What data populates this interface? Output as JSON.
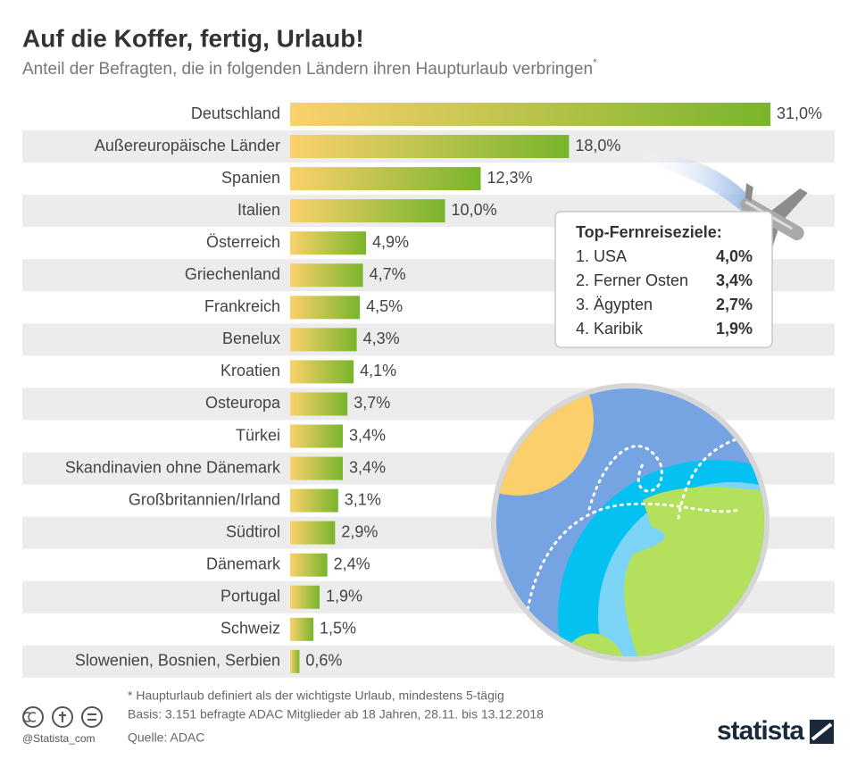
{
  "chart_data": {
    "type": "bar",
    "title": "Auf die Koffer, fertig, Urlaub!",
    "subtitle": "Anteil der Befragten, die in folgenden Ländern ihren Haupturlaub verbringen",
    "subtitle_mark": "*",
    "categories": [
      "Deutschland",
      "Außereuropäische Länder",
      "Spanien",
      "Italien",
      "Österreich",
      "Griechenland",
      "Frankreich",
      "Benelux",
      "Kroatien",
      "Osteuropa",
      "Türkei",
      "Skandinavien ohne Dänemark",
      "Großbritannien/Irland",
      "Südtirol",
      "Dänemark",
      "Portugal",
      "Schweiz",
      "Slowenien, Bosnien, Serbien"
    ],
    "values": [
      31.0,
      18.0,
      12.3,
      10.0,
      4.9,
      4.7,
      4.5,
      4.3,
      4.1,
      3.7,
      3.4,
      3.4,
      3.1,
      2.9,
      2.4,
      1.9,
      1.5,
      0.6
    ],
    "value_labels": [
      "31,0%",
      "18,0%",
      "12,3%",
      "10,0%",
      "4,9%",
      "4,7%",
      "4,5%",
      "4,3%",
      "4,1%",
      "3,7%",
      "3,4%",
      "3,4%",
      "3,1%",
      "2,9%",
      "2,4%",
      "1,9%",
      "1,5%",
      "0,6%"
    ],
    "colors": [
      "#fbd16b",
      "#78b52a"
    ],
    "inset": {
      "title": "Top-Fernreiseziele:",
      "rows": [
        [
          "1. USA",
          "4,0%"
        ],
        [
          "2. Ferner Osten",
          "3,4%"
        ],
        [
          "3. Ägypten",
          "2,7%"
        ],
        [
          "4. Karibik",
          "1,9%"
        ]
      ]
    },
    "notes": [
      "* Haupturlaub definiert als der wichtigste Urlaub, mindestens 5-tägig",
      "Basis: 3.151 befragte ADAC Mitglieder ab 18 Jahren, 28.11. bis 13.12.2018",
      "Quelle: ADAC"
    ],
    "handle": "@Statista_com",
    "brand": "statista"
  }
}
